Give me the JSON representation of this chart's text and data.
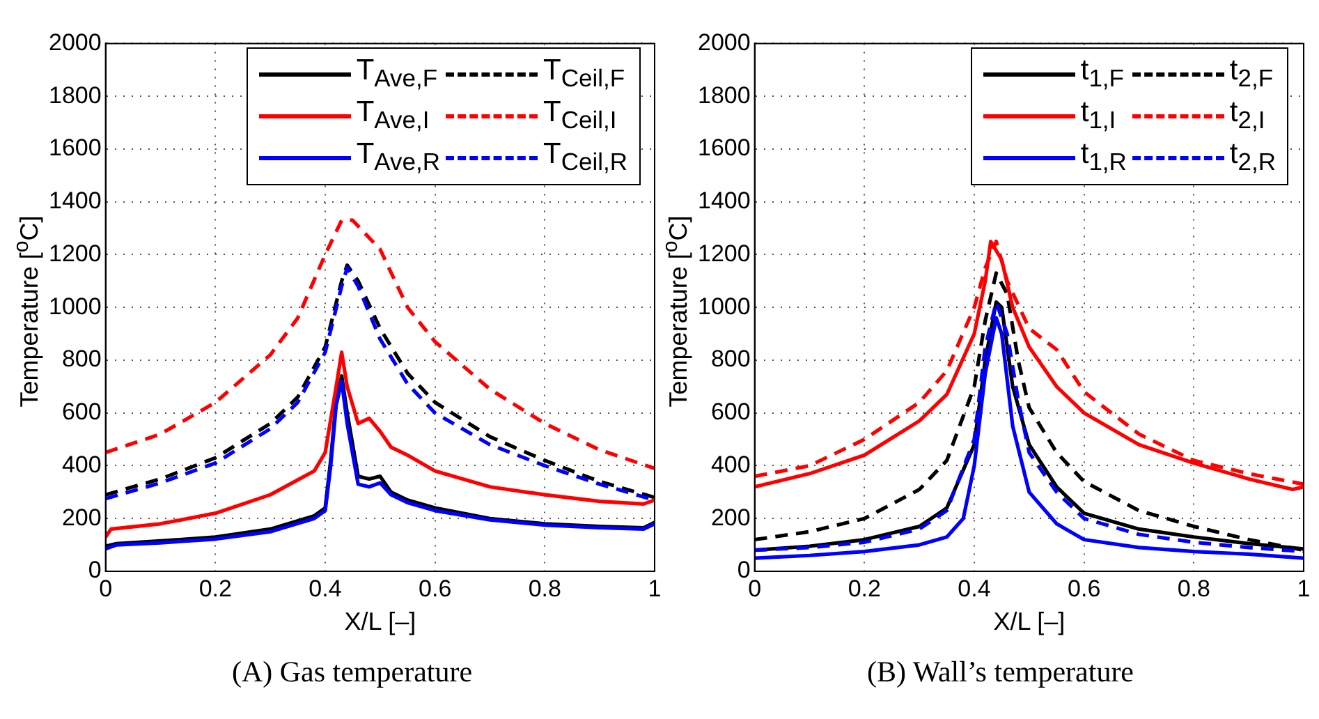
{
  "chart_data": [
    {
      "type": "line",
      "xlabel": "X/L [–]",
      "ylabel": "Temperature [$^{o}$C]",
      "annotations": [
        "(A) Gas temperature"
      ],
      "xlim": [
        0,
        1
      ],
      "xticks": [
        0,
        0.2,
        0.4,
        0.6,
        0.8,
        1
      ],
      "ylim": [
        0,
        2000
      ],
      "yticks": [
        0,
        200,
        400,
        600,
        800,
        1000,
        1200,
        1400,
        1600,
        1800,
        2000
      ],
      "grid": true,
      "legend": "top right",
      "marker": "none",
      "series": [
        {
          "name": "T$_{Ave,F}$",
          "color": "#000000",
          "line_style": "solid",
          "x": [
            0,
            0.02,
            0.1,
            0.2,
            0.3,
            0.38,
            0.4,
            0.41,
            0.42,
            0.43,
            0.44,
            0.46,
            0.48,
            0.5,
            0.52,
            0.55,
            0.6,
            0.7,
            0.8,
            0.9,
            0.98,
            1
          ],
          "values": [
            95,
            105,
            115,
            130,
            160,
            210,
            240,
            420,
            650,
            740,
            600,
            360,
            350,
            360,
            300,
            270,
            240,
            200,
            180,
            170,
            165,
            185
          ]
        },
        {
          "name": "T$_{Ceil,F}$",
          "color": "#000000",
          "line_style": "dashed",
          "x": [
            0,
            0.1,
            0.2,
            0.3,
            0.35,
            0.4,
            0.43,
            0.44,
            0.46,
            0.5,
            0.55,
            0.6,
            0.7,
            0.8,
            0.9,
            1
          ],
          "values": [
            290,
            350,
            430,
            560,
            660,
            850,
            1100,
            1160,
            1100,
            920,
            750,
            640,
            510,
            420,
            340,
            280
          ]
        },
        {
          "name": "T$_{Ave,I}$",
          "color": "#ff0000",
          "line_style": "solid",
          "x": [
            0,
            0.01,
            0.1,
            0.2,
            0.3,
            0.38,
            0.4,
            0.42,
            0.43,
            0.44,
            0.46,
            0.48,
            0.5,
            0.52,
            0.55,
            0.6,
            0.7,
            0.8,
            0.9,
            0.98,
            1
          ],
          "values": [
            130,
            160,
            180,
            220,
            290,
            380,
            450,
            700,
            830,
            700,
            560,
            580,
            530,
            470,
            440,
            380,
            320,
            290,
            265,
            255,
            270
          ]
        },
        {
          "name": "T$_{Ceil,I}$",
          "color": "#ff0000",
          "line_style": "dashed",
          "x": [
            0,
            0.1,
            0.2,
            0.3,
            0.35,
            0.4,
            0.43,
            0.45,
            0.5,
            0.55,
            0.6,
            0.7,
            0.8,
            0.9,
            1
          ],
          "values": [
            450,
            520,
            640,
            820,
            960,
            1200,
            1330,
            1330,
            1220,
            1000,
            870,
            690,
            560,
            460,
            390
          ]
        },
        {
          "name": "T$_{Ave,R}$",
          "color": "#0000ff",
          "line_style": "solid",
          "x": [
            0,
            0.02,
            0.1,
            0.2,
            0.3,
            0.38,
            0.4,
            0.41,
            0.42,
            0.43,
            0.44,
            0.46,
            0.48,
            0.5,
            0.52,
            0.55,
            0.6,
            0.7,
            0.8,
            0.9,
            0.98,
            1
          ],
          "values": [
            85,
            100,
            108,
            122,
            150,
            200,
            230,
            400,
            630,
            720,
            560,
            330,
            320,
            335,
            290,
            260,
            230,
            195,
            175,
            165,
            160,
            180
          ]
        },
        {
          "name": "T$_{Ceil,R}$",
          "color": "#0000ff",
          "line_style": "dashed",
          "x": [
            0,
            0.1,
            0.2,
            0.3,
            0.35,
            0.4,
            0.43,
            0.44,
            0.46,
            0.5,
            0.55,
            0.6,
            0.7,
            0.8,
            0.9,
            1
          ],
          "values": [
            275,
            335,
            410,
            540,
            640,
            830,
            1080,
            1150,
            1080,
            880,
            710,
            600,
            480,
            400,
            330,
            270
          ]
        }
      ]
    },
    {
      "type": "line",
      "xlabel": "X/L [–]",
      "ylabel": "Temperature [$^{o}$C]",
      "annotations": [
        "(B) Wall’s temperature"
      ],
      "xlim": [
        0,
        1
      ],
      "xticks": [
        0,
        0.2,
        0.4,
        0.6,
        0.8,
        1
      ],
      "ylim": [
        0,
        2000
      ],
      "yticks": [
        0,
        200,
        400,
        600,
        800,
        1000,
        1200,
        1400,
        1600,
        1800,
        2000
      ],
      "grid": true,
      "legend": "top right",
      "marker": "none",
      "series": [
        {
          "name": "t$_{1,F}$",
          "color": "#000000",
          "line_style": "solid",
          "x": [
            0,
            0.1,
            0.2,
            0.3,
            0.35,
            0.4,
            0.42,
            0.44,
            0.45,
            0.47,
            0.5,
            0.55,
            0.6,
            0.7,
            0.8,
            0.9,
            1
          ],
          "values": [
            80,
            95,
            120,
            170,
            240,
            480,
            800,
            1020,
            1000,
            700,
            480,
            320,
            220,
            160,
            130,
            105,
            85
          ]
        },
        {
          "name": "t$_{2,F}$",
          "color": "#000000",
          "line_style": "dashed",
          "x": [
            0,
            0.1,
            0.2,
            0.3,
            0.35,
            0.4,
            0.42,
            0.44,
            0.46,
            0.48,
            0.5,
            0.55,
            0.6,
            0.7,
            0.8,
            0.9,
            1
          ],
          "values": [
            120,
            150,
            200,
            310,
            420,
            700,
            950,
            1130,
            1050,
            800,
            620,
            450,
            340,
            230,
            170,
            120,
            80
          ]
        },
        {
          "name": "t$_{1,I}$",
          "color": "#ff0000",
          "line_style": "solid",
          "x": [
            0,
            0.1,
            0.2,
            0.3,
            0.35,
            0.4,
            0.42,
            0.43,
            0.45,
            0.47,
            0.5,
            0.55,
            0.6,
            0.7,
            0.8,
            0.9,
            0.98,
            1
          ],
          "values": [
            320,
            370,
            440,
            570,
            670,
            900,
            1100,
            1250,
            1180,
            1000,
            850,
            700,
            600,
            480,
            410,
            350,
            310,
            320
          ]
        },
        {
          "name": "t$_{2,I}$",
          "color": "#ff0000",
          "line_style": "dashed",
          "x": [
            0,
            0.1,
            0.2,
            0.3,
            0.35,
            0.4,
            0.42,
            0.44,
            0.46,
            0.5,
            0.55,
            0.6,
            0.7,
            0.8,
            0.9,
            1
          ],
          "values": [
            360,
            400,
            500,
            640,
            760,
            1000,
            1150,
            1250,
            1100,
            920,
            840,
            680,
            520,
            420,
            370,
            330
          ]
        },
        {
          "name": "t$_{1,R}$",
          "color": "#0000ff",
          "line_style": "solid",
          "x": [
            0,
            0.1,
            0.2,
            0.3,
            0.35,
            0.38,
            0.4,
            0.42,
            0.44,
            0.45,
            0.47,
            0.5,
            0.55,
            0.6,
            0.7,
            0.8,
            0.9,
            1
          ],
          "values": [
            50,
            60,
            75,
            100,
            130,
            200,
            400,
            750,
            960,
            900,
            550,
            300,
            180,
            120,
            90,
            75,
            65,
            50
          ]
        },
        {
          "name": "t$_{2,R}$",
          "color": "#0000ff",
          "line_style": "dashed",
          "x": [
            0,
            0.1,
            0.2,
            0.3,
            0.35,
            0.4,
            0.42,
            0.44,
            0.46,
            0.48,
            0.5,
            0.55,
            0.6,
            0.7,
            0.8,
            0.9,
            1
          ],
          "values": [
            80,
            90,
            110,
            160,
            230,
            500,
            850,
            1020,
            900,
            650,
            450,
            300,
            200,
            140,
            110,
            90,
            75
          ]
        }
      ]
    }
  ]
}
